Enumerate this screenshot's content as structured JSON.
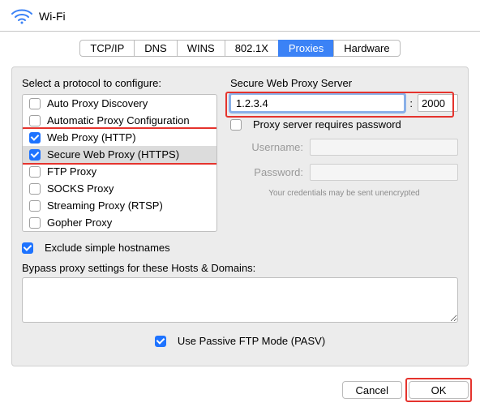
{
  "colors": {
    "accent": "#1e73ff",
    "highlight": "#e5332d",
    "panel_bg": "#ececec",
    "border": "#bfbfbf",
    "disabled_text": "#9a9a9a",
    "focus_ring": "#8ab0e8"
  },
  "header": {
    "title": "Wi-Fi"
  },
  "tabs": {
    "items": [
      {
        "label": "TCP/IP",
        "active": false
      },
      {
        "label": "DNS",
        "active": false
      },
      {
        "label": "WINS",
        "active": false
      },
      {
        "label": "802.1X",
        "active": false
      },
      {
        "label": "Proxies",
        "active": true
      },
      {
        "label": "Hardware",
        "active": false
      }
    ]
  },
  "left": {
    "section_label": "Select a protocol to configure:",
    "protocols": [
      {
        "label": "Auto Proxy Discovery",
        "checked": false,
        "selected": false
      },
      {
        "label": "Automatic Proxy Configuration",
        "checked": false,
        "selected": false
      },
      {
        "label": "Web Proxy (HTTP)",
        "checked": true,
        "selected": false
      },
      {
        "label": "Secure Web Proxy (HTTPS)",
        "checked": true,
        "selected": true
      },
      {
        "label": "FTP Proxy",
        "checked": false,
        "selected": false
      },
      {
        "label": "SOCKS Proxy",
        "checked": false,
        "selected": false
      },
      {
        "label": "Streaming Proxy (RTSP)",
        "checked": false,
        "selected": false
      },
      {
        "label": "Gopher Proxy",
        "checked": false,
        "selected": false
      }
    ]
  },
  "right": {
    "section_label": "Secure Web Proxy Server",
    "server_value": "1.2.3.4",
    "port_value": "2000",
    "requires_password_label": "Proxy server requires password",
    "requires_password_checked": false,
    "username_label": "Username:",
    "username_value": "",
    "password_label": "Password:",
    "password_value": "",
    "warn": "Your credentials may be sent unencrypted"
  },
  "exclude": {
    "label": "Exclude simple hostnames",
    "checked": true
  },
  "bypass": {
    "label": "Bypass proxy settings for these Hosts & Domains:",
    "value": ""
  },
  "pasv": {
    "label": "Use Passive FTP Mode (PASV)",
    "checked": true
  },
  "footer": {
    "cancel": "Cancel",
    "ok": "OK"
  }
}
